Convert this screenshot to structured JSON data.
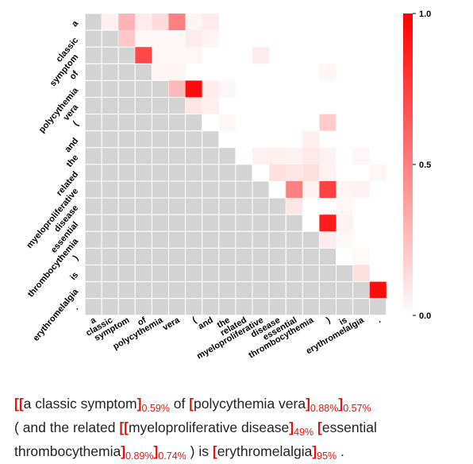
{
  "chart_data": {
    "type": "heatmap",
    "tokens": [
      "a",
      "classic",
      "symptom",
      "of",
      "polycythemia",
      "vera",
      "(",
      "and",
      "the",
      "related",
      "myeloproliferative",
      "disease",
      "essential",
      "thrombocythemia",
      ")",
      "is",
      "erythromelalgia",
      "."
    ],
    "colorbar": {
      "min": 0.0,
      "max": 1.0,
      "ticks": [
        "0.0",
        "0.5",
        "1.0"
      ],
      "colors": [
        "#ffffff",
        "#ff0000"
      ]
    },
    "masked_color": "#d3d3d3",
    "cells": [
      {
        "row": 0,
        "col": 1,
        "value": 0.06
      },
      {
        "row": 0,
        "col": 2,
        "value": 0.3
      },
      {
        "row": 0,
        "col": 3,
        "value": 0.08
      },
      {
        "row": 0,
        "col": 4,
        "value": 0.14
      },
      {
        "row": 0,
        "col": 5,
        "value": 0.5
      },
      {
        "row": 0,
        "col": 6,
        "value": 0.04
      },
      {
        "row": 0,
        "col": 7,
        "value": 0.08
      },
      {
        "row": 1,
        "col": 2,
        "value": 0.22
      },
      {
        "row": 1,
        "col": 3,
        "value": 0.03
      },
      {
        "row": 1,
        "col": 4,
        "value": 0.03
      },
      {
        "row": 1,
        "col": 5,
        "value": 0.03
      },
      {
        "row": 1,
        "col": 6,
        "value": 0.08
      },
      {
        "row": 1,
        "col": 7,
        "value": 0.04
      },
      {
        "row": 2,
        "col": 3,
        "value": 0.72
      },
      {
        "row": 2,
        "col": 4,
        "value": 0.03
      },
      {
        "row": 2,
        "col": 5,
        "value": 0.03
      },
      {
        "row": 2,
        "col": 6,
        "value": 0.03
      },
      {
        "row": 2,
        "col": 10,
        "value": 0.08
      },
      {
        "row": 3,
        "col": 4,
        "value": 0.04
      },
      {
        "row": 3,
        "col": 5,
        "value": 0.04
      },
      {
        "row": 3,
        "col": 14,
        "value": 0.03
      },
      {
        "row": 4,
        "col": 5,
        "value": 0.28
      },
      {
        "row": 4,
        "col": 6,
        "value": 0.95
      },
      {
        "row": 4,
        "col": 7,
        "value": 0.07
      },
      {
        "row": 4,
        "col": 8,
        "value": 0.03
      },
      {
        "row": 5,
        "col": 6,
        "value": 0.1
      },
      {
        "row": 5,
        "col": 7,
        "value": 0.06
      },
      {
        "row": 6,
        "col": 8,
        "value": 0.03
      },
      {
        "row": 6,
        "col": 14,
        "value": 0.2
      },
      {
        "row": 7,
        "col": 13,
        "value": 0.06
      },
      {
        "row": 8,
        "col": 10,
        "value": 0.05
      },
      {
        "row": 8,
        "col": 11,
        "value": 0.06
      },
      {
        "row": 8,
        "col": 12,
        "value": 0.05
      },
      {
        "row": 8,
        "col": 13,
        "value": 0.09
      },
      {
        "row": 8,
        "col": 14,
        "value": 0.05
      },
      {
        "row": 8,
        "col": 16,
        "value": 0.03
      },
      {
        "row": 9,
        "col": 11,
        "value": 0.12
      },
      {
        "row": 9,
        "col": 12,
        "value": 0.1
      },
      {
        "row": 9,
        "col": 13,
        "value": 0.12
      },
      {
        "row": 9,
        "col": 14,
        "value": 0.05
      },
      {
        "row": 9,
        "col": 17,
        "value": 0.03
      },
      {
        "row": 10,
        "col": 12,
        "value": 0.49
      },
      {
        "row": 10,
        "col": 13,
        "value": 0.05
      },
      {
        "row": 10,
        "col": 14,
        "value": 0.74
      },
      {
        "row": 10,
        "col": 15,
        "value": 0.04
      },
      {
        "row": 10,
        "col": 16,
        "value": 0.05
      },
      {
        "row": 11,
        "col": 12,
        "value": 0.1
      },
      {
        "row": 11,
        "col": 15,
        "value": 0.03
      },
      {
        "row": 12,
        "col": 14,
        "value": 0.89
      },
      {
        "row": 12,
        "col": 15,
        "value": 0.05
      },
      {
        "row": 13,
        "col": 14,
        "value": 0.08
      },
      {
        "row": 13,
        "col": 15,
        "value": 0.03
      },
      {
        "row": 14,
        "col": 16,
        "value": 0.02
      },
      {
        "row": 15,
        "col": 16,
        "value": 0.12
      },
      {
        "row": 16,
        "col": 17,
        "value": 0.95
      }
    ]
  },
  "caption": {
    "lines": [
      [
        {
          "t": "br",
          "s": "[["
        },
        {
          "t": "tx",
          "s": "a classic symptom"
        },
        {
          "t": "br",
          "s": "]"
        },
        {
          "t": "pct",
          "s": "0.59%"
        },
        {
          "t": "tx",
          "s": " of "
        },
        {
          "t": "br",
          "s": "["
        },
        {
          "t": "tx",
          "s": "polycythemia vera"
        },
        {
          "t": "br",
          "s": "]"
        },
        {
          "t": "pct",
          "s": "0.88%"
        },
        {
          "t": "br",
          "s": "]"
        },
        {
          "t": "pct",
          "s": "0.57%"
        }
      ],
      [
        {
          "t": "tx",
          "s": "( and the related "
        },
        {
          "t": "br",
          "s": "[["
        },
        {
          "t": "tx",
          "s": "myeloproliferative disease"
        },
        {
          "t": "br",
          "s": "]"
        },
        {
          "t": "pct",
          "s": "49%"
        },
        {
          "t": "tx",
          "s": " "
        },
        {
          "t": "br",
          "s": "["
        },
        {
          "t": "tx",
          "s": "essential"
        }
      ],
      [
        {
          "t": "tx",
          "s": "thrombocythemia"
        },
        {
          "t": "br",
          "s": "]"
        },
        {
          "t": "pct",
          "s": "0.89%"
        },
        {
          "t": "br",
          "s": "]"
        },
        {
          "t": "pct",
          "s": "0.74%"
        },
        {
          "t": "tx",
          "s": " ) is "
        },
        {
          "t": "br",
          "s": "["
        },
        {
          "t": "tx",
          "s": "erythromelalgia"
        },
        {
          "t": "br",
          "s": "]"
        },
        {
          "t": "pct",
          "s": "95%"
        },
        {
          "t": "tx",
          "s": " ."
        }
      ]
    ]
  }
}
